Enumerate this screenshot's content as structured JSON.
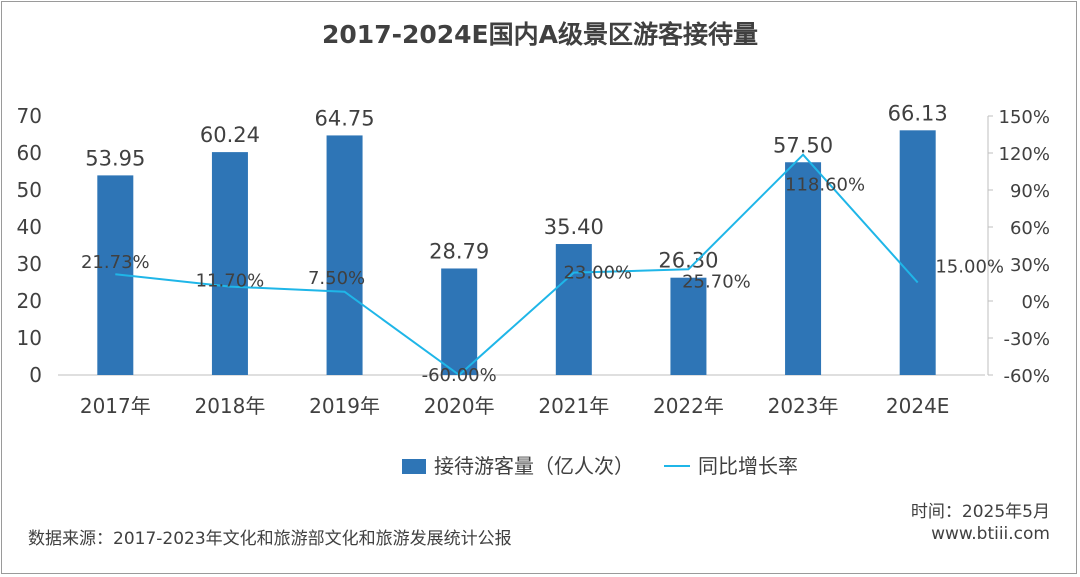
{
  "colors": {
    "bar": "#2e75b6",
    "line": "#1fb6e8",
    "text": "#404040",
    "axis": "#bfbfbf"
  },
  "chart_data": {
    "type": "bar",
    "title": "2017-2024E国内A级景区游客接待量",
    "categories": [
      "2017年",
      "2018年",
      "2019年",
      "2020年",
      "2021年",
      "2022年",
      "2023年",
      "2024E"
    ],
    "series": [
      {
        "name": "接待游客量（亿人次）",
        "type": "bar",
        "axis": "left",
        "values": [
          53.95,
          60.24,
          64.75,
          28.79,
          35.4,
          26.3,
          57.5,
          66.13
        ],
        "labels": [
          "53.95",
          "60.24",
          "64.75",
          "28.79",
          "35.40",
          "26.30",
          "57.50",
          "66.13"
        ]
      },
      {
        "name": "同比增长率",
        "type": "line",
        "axis": "right",
        "values": [
          21.73,
          11.7,
          7.5,
          -60.0,
          23.0,
          25.7,
          118.6,
          15.0
        ],
        "labels": [
          "21.73%",
          "11.70%",
          "7.50%",
          "-60.00%",
          "23.00%",
          "25.70%",
          "118.60%",
          "15.00%"
        ]
      }
    ],
    "y_left": {
      "lim": [
        0,
        70
      ],
      "ticks": [
        "0",
        "10",
        "20",
        "30",
        "40",
        "50",
        "60",
        "70"
      ]
    },
    "y_right": {
      "lim": [
        -60,
        150
      ],
      "ticks": [
        "-60%",
        "-30%",
        "0%",
        "30%",
        "60%",
        "90%",
        "120%",
        "150%"
      ]
    },
    "legend": "bottom",
    "grid": false
  },
  "footer": {
    "source": "数据来源：2017-2023年文化和旅游部文化和旅游发展统计公报",
    "time": "时间：2025年5月",
    "site": "www.btiii.com"
  }
}
